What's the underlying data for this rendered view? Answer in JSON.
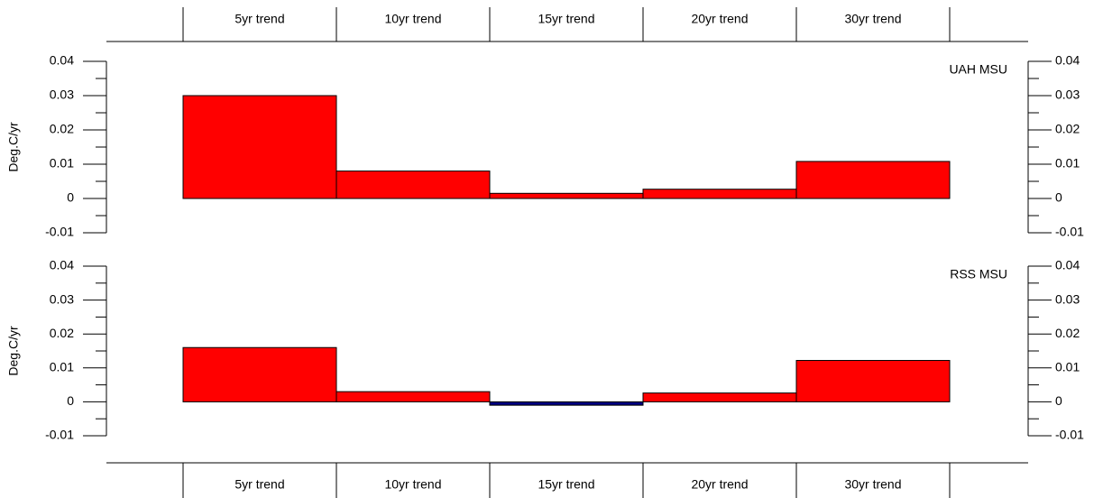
{
  "chart_data": [
    {
      "type": "bar",
      "annotation": "UAH MSU",
      "ylabel": "Deg.C/yr",
      "categories": [
        "5yr trend",
        "10yr trend",
        "15yr trend",
        "20yr trend",
        "30yr trend"
      ],
      "values": [
        0.03,
        0.008,
        0.0015,
        0.0027,
        0.0108
      ],
      "color": "#ff0000",
      "negative_color": "#000080",
      "ylim": [
        -0.01,
        0.04
      ],
      "yticks": [
        -0.01,
        0,
        0.01,
        0.02,
        0.03,
        0.04
      ],
      "minor_yticks": [
        -0.005,
        0.005,
        0.015,
        0.025,
        0.035
      ]
    },
    {
      "type": "bar",
      "annotation": "RSS MSU",
      "ylabel": "Deg.C/yr",
      "categories": [
        "5yr trend",
        "10yr trend",
        "15yr trend",
        "20yr trend",
        "30yr trend"
      ],
      "values": [
        0.016,
        0.003,
        -0.001,
        0.0026,
        0.0122
      ],
      "color": "#ff0000",
      "negative_color": "#000080",
      "ylim": [
        -0.01,
        0.04
      ],
      "yticks": [
        -0.01,
        0,
        0.01,
        0.02,
        0.03,
        0.04
      ],
      "minor_yticks": [
        -0.005,
        0.005,
        0.015,
        0.025,
        0.035
      ]
    }
  ]
}
